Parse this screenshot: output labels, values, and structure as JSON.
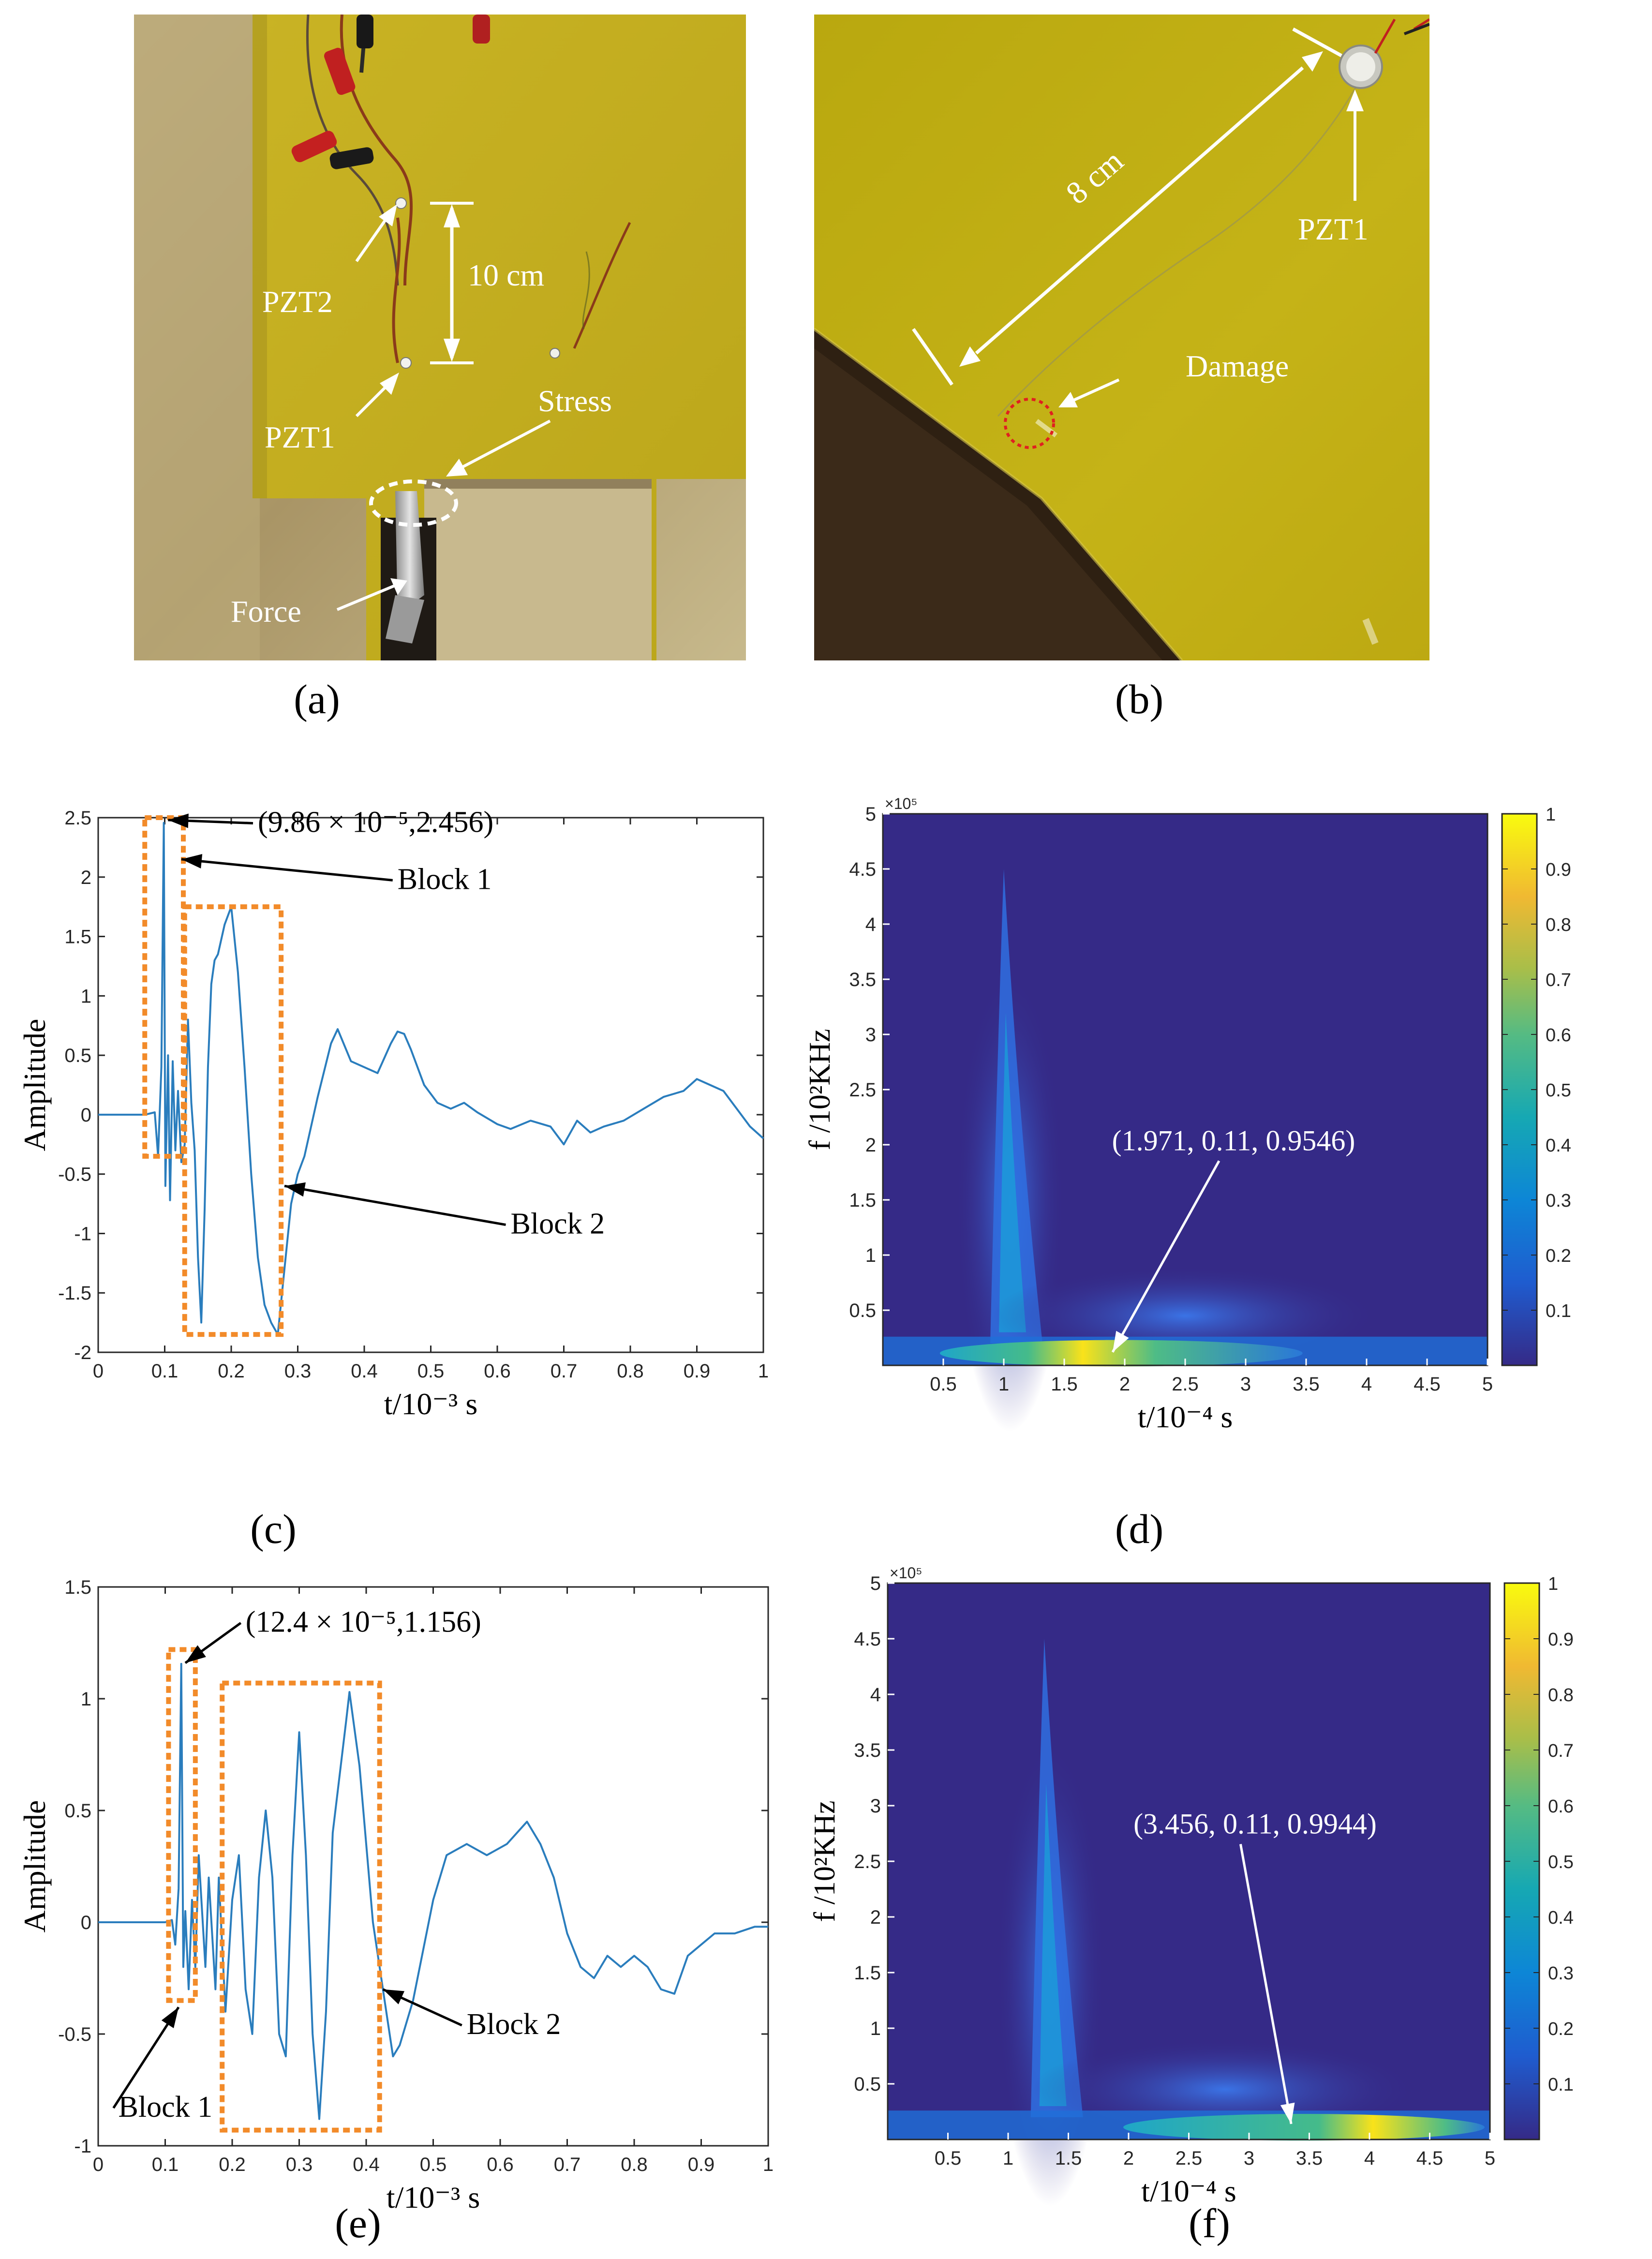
{
  "panel_a": {
    "label": "(a)",
    "annotations": {
      "pzt2": "PZT2",
      "pzt1": "PZT1",
      "distance": "10 cm",
      "stress": "Stress",
      "force": "Force"
    },
    "colors": {
      "background": "#b8a475",
      "plate": "#c6b21f",
      "clamp": "#1e1a16"
    }
  },
  "panel_b": {
    "label": "(b)",
    "annotations": {
      "distance": "8 cm",
      "pzt1": "PZT1",
      "damage": "Damage"
    },
    "colors": {
      "plate": "#bfae12",
      "shadow": "#3a2a18",
      "damage_circle": "#e02020"
    }
  },
  "panel_c": {
    "label": "(c)"
  },
  "panel_d": {
    "label": "(d)"
  },
  "panel_e": {
    "label": "(e)"
  },
  "panel_f": {
    "label": "(f)"
  },
  "chart_data": [
    {
      "id": "c",
      "type": "line",
      "title": "",
      "xlabel": "t/10⁻³ s",
      "ylabel": "Amplitude",
      "xlim": [
        0,
        1
      ],
      "ylim": [
        -2,
        2.5
      ],
      "xticks": [
        "0",
        "0.1",
        "0.2",
        "0.3",
        "0.4",
        "0.5",
        "0.6",
        "0.7",
        "0.8",
        "0.9",
        "1"
      ],
      "yticks": [
        "-2",
        "-1.5",
        "-1",
        "-0.5",
        "0",
        "0.5",
        "1",
        "1.5",
        "2",
        "2.5"
      ],
      "series": [
        {
          "name": "signal",
          "color": "#2a7dbd",
          "points": [
            [
              0,
              0
            ],
            [
              0.07,
              0
            ],
            [
              0.085,
              0.02
            ],
            [
              0.09,
              -0.35
            ],
            [
              0.095,
              0.4
            ],
            [
              0.0986,
              2.456
            ],
            [
              0.101,
              -0.6
            ],
            [
              0.105,
              0.5
            ],
            [
              0.108,
              -0.72
            ],
            [
              0.112,
              0.45
            ],
            [
              0.116,
              -0.3
            ],
            [
              0.12,
              0.2
            ],
            [
              0.125,
              -0.4
            ],
            [
              0.13,
              -0.25
            ],
            [
              0.135,
              0.8
            ],
            [
              0.14,
              0.1
            ],
            [
              0.145,
              -0.3
            ],
            [
              0.15,
              -1.2
            ],
            [
              0.155,
              -1.75
            ],
            [
              0.16,
              -0.8
            ],
            [
              0.165,
              0.4
            ],
            [
              0.17,
              1.1
            ],
            [
              0.175,
              1.3
            ],
            [
              0.18,
              1.35
            ],
            [
              0.19,
              1.6
            ],
            [
              0.2,
              1.75
            ],
            [
              0.21,
              1.2
            ],
            [
              0.22,
              0.4
            ],
            [
              0.23,
              -0.5
            ],
            [
              0.24,
              -1.2
            ],
            [
              0.25,
              -1.6
            ],
            [
              0.26,
              -1.75
            ],
            [
              0.27,
              -1.85
            ],
            [
              0.28,
              -1.3
            ],
            [
              0.29,
              -0.75
            ],
            [
              0.3,
              -0.5
            ],
            [
              0.31,
              -0.35
            ],
            [
              0.33,
              0.15
            ],
            [
              0.35,
              0.6
            ],
            [
              0.36,
              0.72
            ],
            [
              0.38,
              0.45
            ],
            [
              0.4,
              0.4
            ],
            [
              0.42,
              0.35
            ],
            [
              0.44,
              0.6
            ],
            [
              0.45,
              0.7
            ],
            [
              0.46,
              0.68
            ],
            [
              0.47,
              0.55
            ],
            [
              0.49,
              0.25
            ],
            [
              0.51,
              0.1
            ],
            [
              0.53,
              0.05
            ],
            [
              0.55,
              0.1
            ],
            [
              0.57,
              0.02
            ],
            [
              0.6,
              -0.08
            ],
            [
              0.62,
              -0.12
            ],
            [
              0.65,
              -0.05
            ],
            [
              0.68,
              -0.1
            ],
            [
              0.7,
              -0.25
            ],
            [
              0.72,
              -0.05
            ],
            [
              0.74,
              -0.15
            ],
            [
              0.76,
              -0.1
            ],
            [
              0.79,
              -0.05
            ],
            [
              0.82,
              0.05
            ],
            [
              0.85,
              0.15
            ],
            [
              0.88,
              0.2
            ],
            [
              0.9,
              0.3
            ],
            [
              0.92,
              0.25
            ],
            [
              0.94,
              0.2
            ],
            [
              0.96,
              0.05
            ],
            [
              0.98,
              -0.1
            ],
            [
              1.0,
              -0.2
            ]
          ]
        }
      ],
      "boxes": [
        {
          "x0": 0.07,
          "x1": 0.128,
          "y0": -0.35,
          "y1": 2.5
        },
        {
          "x0": 0.13,
          "x1": 0.275,
          "y0": -1.85,
          "y1": 1.75
        }
      ],
      "annotations": [
        {
          "text": "(9.86 × 10⁻⁵,2.456)",
          "tx": 0.24,
          "ty": 2.38,
          "ax": 0.105,
          "ay": 2.48
        },
        {
          "text": "Block 1",
          "tx": 0.45,
          "ty": 1.9,
          "ax": 0.125,
          "ay": 2.15
        },
        {
          "text": "Block 2",
          "tx": 0.62,
          "ty": -1.0,
          "ax": 0.28,
          "ay": -0.6
        }
      ]
    },
    {
      "id": "d",
      "type": "heatmap",
      "title": "",
      "xlabel": "t/10⁻⁴ s",
      "ylabel": "f /10²KHz",
      "y_exponent": "×10⁵",
      "xlim": [
        0,
        5
      ],
      "ylim": [
        0,
        5
      ],
      "xticks": [
        "0.5",
        "1",
        "1.5",
        "2",
        "2.5",
        "3",
        "3.5",
        "4",
        "4.5",
        "5"
      ],
      "yticks": [
        "0.5",
        "1",
        "1.5",
        "2",
        "2.5",
        "3",
        "3.5",
        "4",
        "4.5",
        "5"
      ],
      "colorbar": {
        "ticks": [
          "0.1",
          "0.2",
          "0.3",
          "0.4",
          "0.5",
          "0.6",
          "0.7",
          "0.8",
          "0.9",
          "1"
        ],
        "range": [
          0,
          1
        ]
      },
      "peak": {
        "t": 1.971,
        "f": 0.11,
        "value": 0.9546
      },
      "ridge_t": 1.0,
      "annotations": [
        {
          "text": "(1.971, 0.11, 0.9546)",
          "tx": 2.9,
          "ty": 1.95,
          "ax": 1.9,
          "ay": 0.12
        }
      ]
    },
    {
      "id": "e",
      "type": "line",
      "title": "",
      "xlabel": "t/10⁻³ s",
      "ylabel": "Amplitude",
      "xlim": [
        0,
        1
      ],
      "ylim": [
        -1,
        1.5
      ],
      "xticks": [
        "0",
        "0.1",
        "0.2",
        "0.3",
        "0.4",
        "0.5",
        "0.6",
        "0.7",
        "0.8",
        "0.9",
        "1"
      ],
      "yticks": [
        "-1",
        "-0.5",
        "0",
        "0.5",
        "1",
        "1.5"
      ],
      "series": [
        {
          "name": "signal",
          "color": "#2a7dbd",
          "points": [
            [
              0,
              0
            ],
            [
              0.1,
              0
            ],
            [
              0.11,
              0.01
            ],
            [
              0.115,
              -0.1
            ],
            [
              0.12,
              0.15
            ],
            [
              0.124,
              1.156
            ],
            [
              0.127,
              -0.2
            ],
            [
              0.13,
              0.05
            ],
            [
              0.135,
              -0.3
            ],
            [
              0.14,
              0.1
            ],
            [
              0.145,
              -0.2
            ],
            [
              0.15,
              0.3
            ],
            [
              0.16,
              -0.2
            ],
            [
              0.165,
              0.2
            ],
            [
              0.175,
              -0.3
            ],
            [
              0.18,
              0.2
            ],
            [
              0.19,
              -0.4
            ],
            [
              0.2,
              0.1
            ],
            [
              0.21,
              0.3
            ],
            [
              0.22,
              -0.3
            ],
            [
              0.23,
              -0.5
            ],
            [
              0.24,
              0.2
            ],
            [
              0.25,
              0.5
            ],
            [
              0.26,
              0.2
            ],
            [
              0.27,
              -0.5
            ],
            [
              0.28,
              -0.6
            ],
            [
              0.29,
              0.3
            ],
            [
              0.3,
              0.85
            ],
            [
              0.31,
              0.3
            ],
            [
              0.32,
              -0.5
            ],
            [
              0.33,
              -0.88
            ],
            [
              0.34,
              -0.4
            ],
            [
              0.35,
              0.4
            ],
            [
              0.37,
              0.9
            ],
            [
              0.375,
              1.03
            ],
            [
              0.39,
              0.7
            ],
            [
              0.41,
              0.0
            ],
            [
              0.43,
              -0.4
            ],
            [
              0.44,
              -0.6
            ],
            [
              0.45,
              -0.55
            ],
            [
              0.47,
              -0.35
            ],
            [
              0.5,
              0.1
            ],
            [
              0.52,
              0.3
            ],
            [
              0.55,
              0.35
            ],
            [
              0.58,
              0.3
            ],
            [
              0.61,
              0.35
            ],
            [
              0.64,
              0.45
            ],
            [
              0.66,
              0.35
            ],
            [
              0.68,
              0.2
            ],
            [
              0.7,
              -0.05
            ],
            [
              0.72,
              -0.2
            ],
            [
              0.74,
              -0.25
            ],
            [
              0.76,
              -0.15
            ],
            [
              0.78,
              -0.2
            ],
            [
              0.8,
              -0.15
            ],
            [
              0.82,
              -0.2
            ],
            [
              0.84,
              -0.3
            ],
            [
              0.86,
              -0.32
            ],
            [
              0.88,
              -0.15
            ],
            [
              0.9,
              -0.1
            ],
            [
              0.92,
              -0.05
            ],
            [
              0.95,
              -0.05
            ],
            [
              0.98,
              -0.02
            ],
            [
              1.0,
              -0.02
            ]
          ]
        }
      ],
      "boxes": [
        {
          "x0": 0.105,
          "x1": 0.145,
          "y0": -0.35,
          "y1": 1.22
        },
        {
          "x0": 0.185,
          "x1": 0.42,
          "y0": -0.93,
          "y1": 1.07
        }
      ],
      "annotations": [
        {
          "text": "(12.4 × 10⁻⁵,1.156)",
          "tx": 0.22,
          "ty": 1.3,
          "ax": 0.13,
          "ay": 1.16
        },
        {
          "text": "Block 1",
          "tx": 0.03,
          "ty": -0.87,
          "ax": 0.12,
          "ay": -0.38
        },
        {
          "text": "Block 2",
          "tx": 0.55,
          "ty": -0.5,
          "ax": 0.425,
          "ay": -0.3
        }
      ]
    },
    {
      "id": "f",
      "type": "heatmap",
      "title": "",
      "xlabel": "t/10⁻⁴ s",
      "ylabel": "f /10²KHz",
      "y_exponent": "×10⁵",
      "xlim": [
        0,
        5
      ],
      "ylim": [
        0,
        5
      ],
      "xticks": [
        "0.5",
        "1",
        "1.5",
        "2",
        "2.5",
        "3",
        "3.5",
        "4",
        "4.5",
        "5"
      ],
      "yticks": [
        "0.5",
        "1",
        "1.5",
        "2",
        "2.5",
        "3",
        "3.5",
        "4",
        "4.5",
        "5"
      ],
      "colorbar": {
        "ticks": [
          "0.1",
          "0.2",
          "0.3",
          "0.4",
          "0.5",
          "0.6",
          "0.7",
          "0.8",
          "0.9",
          "1"
        ],
        "range": [
          0,
          1
        ]
      },
      "peak": {
        "t": 3.456,
        "f": 0.11,
        "value": 0.9944
      },
      "ridge_t": 1.3,
      "annotations": [
        {
          "text": "(3.456, 0.11, 0.9944)",
          "tx": 3.05,
          "ty": 2.75,
          "ax": 3.35,
          "ay": 0.14
        }
      ]
    }
  ]
}
